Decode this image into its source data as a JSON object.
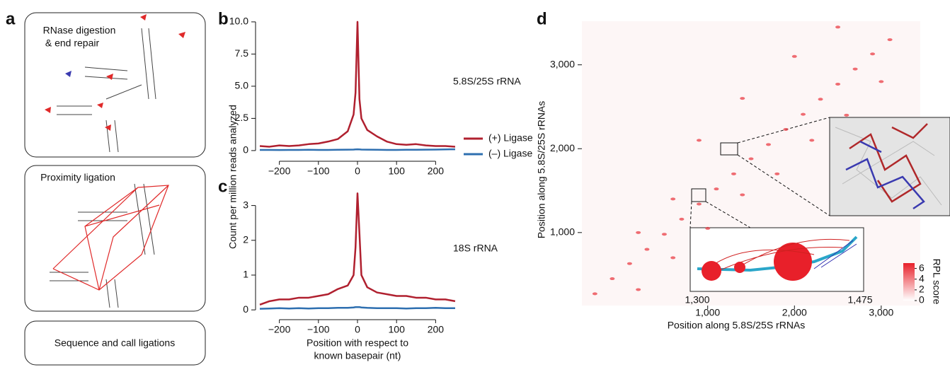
{
  "panel_labels": [
    "a",
    "b",
    "c",
    "d"
  ],
  "steps": [
    [
      "RNase digestion",
      "& end repair"
    ],
    [
      "Proximity ligation"
    ],
    [
      "Sequence and call ligations"
    ]
  ],
  "shared": {
    "y_label": "Count per million reads analyzed",
    "x_label": [
      "Position with respect to",
      "known basepair (nt)"
    ]
  },
  "chart_data": [
    {
      "type": "line",
      "annotation": "5.8S/25S rRNA",
      "x": [
        -250,
        -225,
        -200,
        -175,
        -150,
        -125,
        -100,
        -75,
        -50,
        -25,
        -10,
        -5,
        0,
        5,
        10,
        25,
        50,
        75,
        100,
        125,
        150,
        175,
        200,
        225,
        250
      ],
      "series": [
        {
          "name": "(+) Ligase",
          "color": "#b0202f",
          "values": [
            0.35,
            0.3,
            0.4,
            0.35,
            0.4,
            0.5,
            0.55,
            0.7,
            0.9,
            1.5,
            2.8,
            4.5,
            10,
            4,
            2.5,
            1.6,
            1.1,
            0.7,
            0.5,
            0.45,
            0.5,
            0.4,
            0.35,
            0.35,
            0.3
          ]
        },
        {
          "name": "(–) Ligase",
          "color": "#2e6fb0",
          "values": [
            0.05,
            0.05,
            0.04,
            0.05,
            0.05,
            0.06,
            0.05,
            0.05,
            0.06,
            0.07,
            0.08,
            0.09,
            0.1,
            0.09,
            0.08,
            0.07,
            0.06,
            0.05,
            0.05,
            0.06,
            0.06,
            0.07,
            0.08,
            0.09,
            0.1
          ]
        }
      ],
      "xlim": [
        -270,
        270
      ],
      "xticks": [
        {
          "value": -200,
          "label": "−200"
        },
        {
          "value": -100,
          "label": "−100"
        },
        0,
        100,
        200
      ],
      "ylim": [
        -0.5,
        10.6
      ],
      "yticks": [
        0,
        2.5,
        {
          "value": 5,
          "label": "5.0"
        },
        7.5,
        {
          "value": 10,
          "label": "10.0"
        }
      ]
    },
    {
      "type": "line",
      "annotation": "18S rRNA",
      "x": [
        -250,
        -225,
        -200,
        -175,
        -150,
        -125,
        -100,
        -75,
        -50,
        -25,
        -10,
        -5,
        0,
        5,
        10,
        25,
        50,
        75,
        100,
        125,
        150,
        175,
        200,
        225,
        250
      ],
      "series": [
        {
          "color": "#b0202f",
          "values": [
            0.15,
            0.25,
            0.3,
            0.3,
            0.35,
            0.35,
            0.4,
            0.45,
            0.6,
            0.7,
            1.0,
            1.8,
            3.35,
            2.2,
            1.0,
            0.65,
            0.5,
            0.45,
            0.4,
            0.4,
            0.35,
            0.35,
            0.3,
            0.3,
            0.25
          ]
        },
        {
          "color": "#2e6fb0",
          "values": [
            0.03,
            0.04,
            0.05,
            0.04,
            0.05,
            0.04,
            0.05,
            0.05,
            0.06,
            0.06,
            0.07,
            0.08,
            0.08,
            0.08,
            0.07,
            0.06,
            0.05,
            0.05,
            0.05,
            0.04,
            0.05,
            0.05,
            0.06,
            0.05,
            0.05
          ]
        }
      ],
      "xlim": [
        -270,
        270
      ],
      "xticks": [
        {
          "value": -200,
          "label": "−200"
        },
        {
          "value": -100,
          "label": "−100"
        },
        0,
        100,
        200
      ],
      "ylim": [
        -0.2,
        3.5
      ],
      "yticks": [
        0,
        1,
        2,
        3
      ]
    },
    {
      "type": "scatter",
      "x_label": "Position along 5.8S/25S rRNAs",
      "y_label": "Position along 5.8S/25S rRNAs",
      "color": "#e8323a",
      "x": [
        -300,
        -100,
        100,
        300,
        500,
        700,
        900,
        1100,
        1300,
        1500,
        1700,
        1900,
        2100,
        2300,
        2500,
        2700,
        2900,
        3100,
        200,
        600,
        1000,
        1400,
        1800,
        2200,
        2600,
        3000,
        200,
        600,
        900,
        1400,
        2000,
        2500
      ],
      "y": [
        270,
        450,
        630,
        800,
        980,
        1160,
        1340,
        1520,
        1700,
        1880,
        2050,
        2230,
        2410,
        2590,
        2770,
        2950,
        3130,
        3300,
        320,
        700,
        1050,
        1450,
        1700,
        2100,
        2400,
        2800,
        1000,
        1400,
        2100,
        2600,
        3100,
        3450
      ],
      "xlim": [
        -450,
        3450
      ],
      "xticks": [
        {
          "value": 1000,
          "label": "1,000"
        },
        {
          "value": 2000,
          "label": "2,000"
        },
        {
          "value": 3000,
          "label": "3,000"
        }
      ],
      "ylim": [
        130,
        3520
      ],
      "yticks": [
        {
          "value": 1000,
          "label": "1,000"
        },
        {
          "value": 2000,
          "label": "2,000"
        },
        {
          "value": 3000,
          "label": "3,000"
        }
      ],
      "inset_xlim": [
        1300,
        1475
      ],
      "inset_xticks": [
        {
          "value": 1300,
          "label": "1,300"
        },
        {
          "value": 1475,
          "label": "1,475"
        }
      ],
      "colorbar": {
        "label": "RPL score",
        "lim": [
          0,
          7
        ],
        "ticks": [
          0,
          2,
          4,
          6
        ]
      }
    }
  ]
}
